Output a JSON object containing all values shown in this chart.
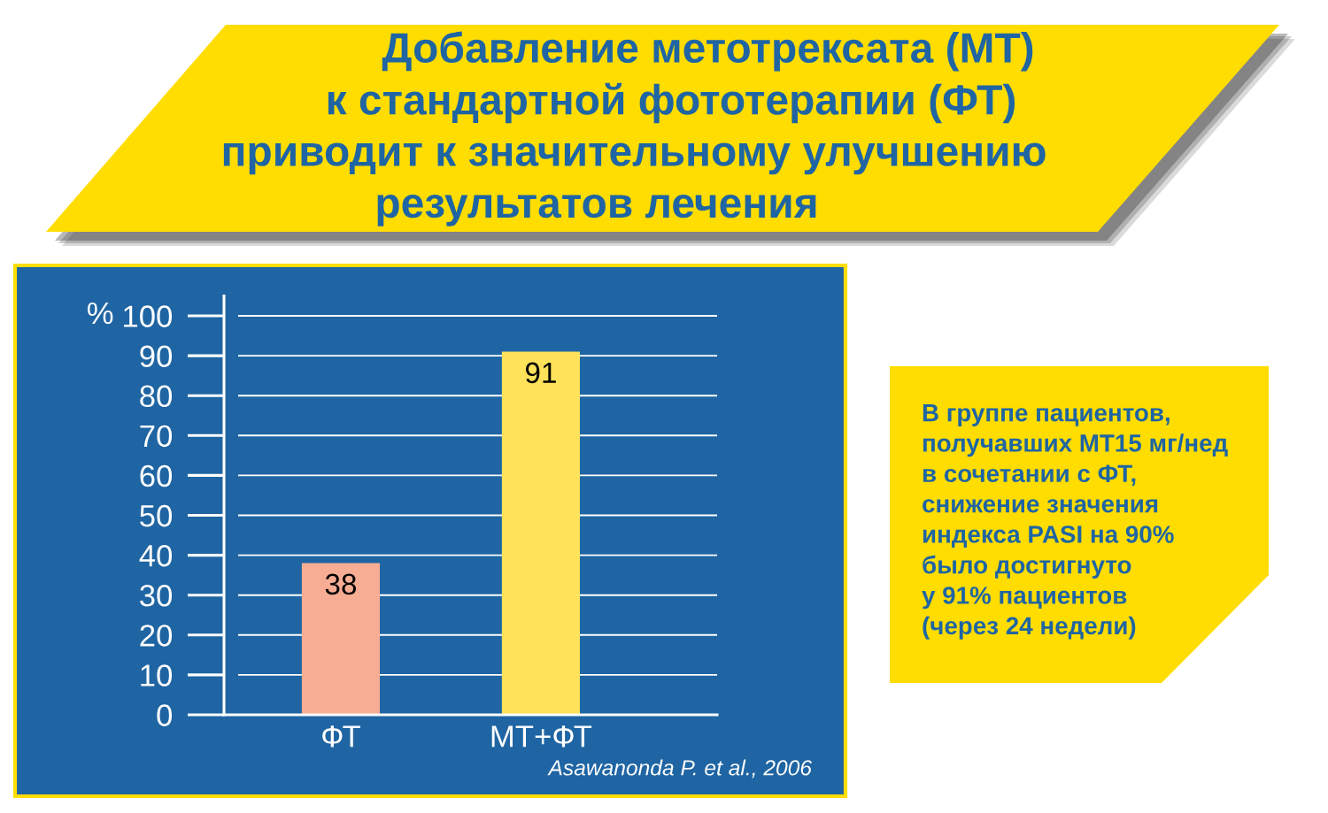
{
  "chart_data": {
    "type": "bar",
    "title": "Добавление метотрексата (МТ)\nк стандартной фототерапии (ФТ)\nприводит к значительному улучшению\nрезультатов лечения",
    "ylabel": "%",
    "categories": [
      "ФТ",
      "МТ+ФТ"
    ],
    "values": [
      38,
      91
    ],
    "colors": [
      "#f7ad93",
      "#fde25a"
    ],
    "ylim": [
      0,
      105
    ],
    "yticks": [
      0,
      10,
      20,
      30,
      40,
      50,
      60,
      70,
      80,
      90,
      100
    ],
    "grid": "y",
    "data_labels": true,
    "annotations": [
      "В группе пациентов,\nполучавших МТ15 мг/нед\nв сочетании с ФТ,\nснижение значения\nиндекса PASI на 90%\nбыло достигнуто\nу 91% пациентов\n(через 24 недели)",
      "Asawanonda P. et al., 2006"
    ]
  }
}
